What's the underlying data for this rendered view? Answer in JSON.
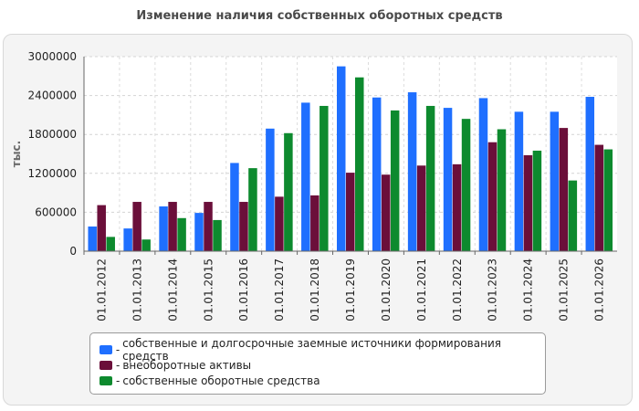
{
  "chart_data": {
    "type": "bar",
    "title": "Изменение наличия собственных оборотных средств",
    "ylabel": "тыс.",
    "xlabel": "",
    "ylim": [
      0,
      3000000
    ],
    "yticks": [
      0,
      600000,
      1200000,
      1800000,
      2400000,
      3000000
    ],
    "grid": true,
    "legend_position": "bottom",
    "categories": [
      "01.01.2012",
      "01.01.2013",
      "01.01.2014",
      "01.01.2015",
      "01.01.2016",
      "01.01.2017",
      "01.01.2018",
      "01.01.2019",
      "01.01.2020",
      "01.01.2021",
      "01.01.2022",
      "01.01.2023",
      "01.01.2024",
      "01.01.2025",
      "01.01.2026"
    ],
    "series": [
      {
        "name": "собственные и долгосрочные заемные источники формирования средств",
        "color": "#1f6fff",
        "values": [
          380000,
          350000,
          690000,
          590000,
          1360000,
          1890000,
          2290000,
          2850000,
          2370000,
          2450000,
          2210000,
          2360000,
          2150000,
          2150000,
          2380000
        ]
      },
      {
        "name": "внеоборотные активы",
        "color": "#6b0f3a",
        "values": [
          710000,
          760000,
          760000,
          760000,
          760000,
          840000,
          860000,
          1210000,
          1180000,
          1320000,
          1340000,
          1680000,
          1480000,
          1900000,
          1640000
        ]
      },
      {
        "name": "собственные оборотные средства",
        "color": "#0d8a2e",
        "values": [
          220000,
          180000,
          510000,
          480000,
          1280000,
          1820000,
          2240000,
          2680000,
          2170000,
          2240000,
          2040000,
          1880000,
          1550000,
          1090000,
          1570000
        ]
      }
    ]
  },
  "legend": {
    "dash": "-"
  }
}
